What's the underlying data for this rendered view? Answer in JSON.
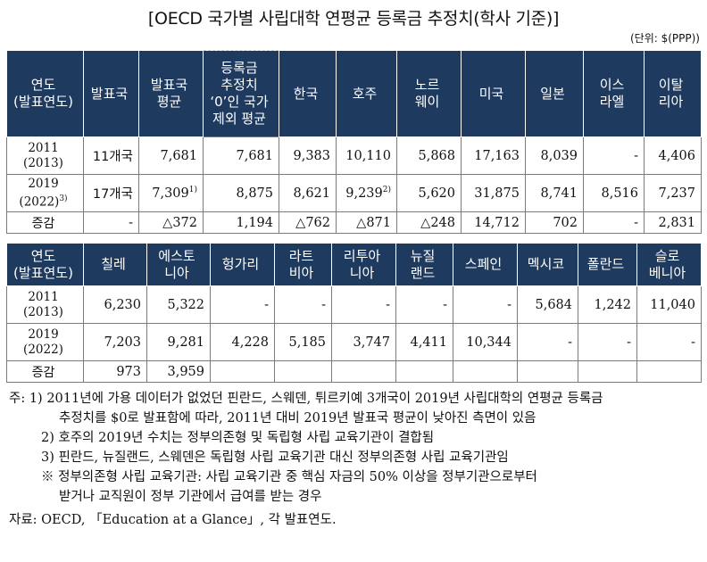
{
  "title": "[OECD 국가별 사립대학 연평균 등록금 추정치(학사 기준)]",
  "unit": "(단위: $(PPP))",
  "table1": {
    "headers": [
      "연도\n(발표연도)",
      "발표국",
      "발표국\n평균",
      "등록금\n추정치\n‘0’인 국가\n제외 평균",
      "한국",
      "호주",
      "노르\n웨이",
      "미국",
      "일본",
      "이스\n라엘",
      "이탈\n리아"
    ],
    "rows": [
      {
        "year": "2011\n(2013)",
        "cells": [
          "11개국",
          "7,681",
          "7,681",
          "9,383",
          "10,110",
          "5,868",
          "17,163",
          "8,039",
          "-",
          "4,406"
        ]
      },
      {
        "year": "2019\n(2022)",
        "year_sup": "3)",
        "cells": [
          "17개국",
          "7,309",
          "8,875",
          "8,621",
          "9,239",
          "5,620",
          "31,875",
          "8,741",
          "8,516",
          "7,237"
        ],
        "sup_col2": "1)",
        "sup_col5": "2)"
      },
      {
        "year": "증감",
        "cells": [
          "-",
          "△372",
          "1,194",
          "△762",
          "△871",
          "△248",
          "14,712",
          "702",
          "-",
          "2,831"
        ]
      }
    ]
  },
  "table2": {
    "headers": [
      "연도\n(발표연도)",
      "칠레",
      "에스토\n니아",
      "헝가리",
      "라트\n비아",
      "리투아\n니아",
      "뉴질\n랜드",
      "스페인",
      "멕시코",
      "폴란드",
      "슬로\n베니아"
    ],
    "rows": [
      {
        "year": "2011\n(2013)",
        "cells": [
          "6,230",
          "5,322",
          "-",
          "-",
          "-",
          "-",
          "-",
          "5,684",
          "1,242",
          "11,040"
        ]
      },
      {
        "year": "2019\n(2022)",
        "cells": [
          "7,203",
          "9,281",
          "4,228",
          "5,185",
          "3,747",
          "4,411",
          "10,344",
          "-",
          "-",
          "-"
        ]
      },
      {
        "year": "증감",
        "cells": [
          "973",
          "3,959",
          "",
          "",
          "",
          "",
          "",
          "",
          "",
          ""
        ]
      }
    ]
  },
  "notes": {
    "n1a": "주: 1) 2011년에 가용 데이터가 없었던 핀란드, 스웨덴, 튀르키예 3개국이 2019년 사립대학의 연평균 등록금",
    "n1b": "추정치를 $0로 발표함에 따라, 2011년 대비 2019년 발표국 평균이 낮아진 측면이 있음",
    "n2": "2) 호주의 2019년 수치는 정부의존형 및 독립형 사립 교육기관이 결합됨",
    "n3": "3) 핀란드, 뉴질랜드, 스웨덴은 독립형 사립 교육기관 대신 정부의존형 사립 교육기관임",
    "n4a": "※ 정부의존형 사립 교육기관: 사립 교육기관 중 핵심 자금의 50% 이상을 정부기관으로부터",
    "n4b": "받거나 교직원이 정부 기관에서 급여를 받는 경우",
    "source": "자료: OECD, 「Education at a Glance」, 각 발표연도."
  }
}
